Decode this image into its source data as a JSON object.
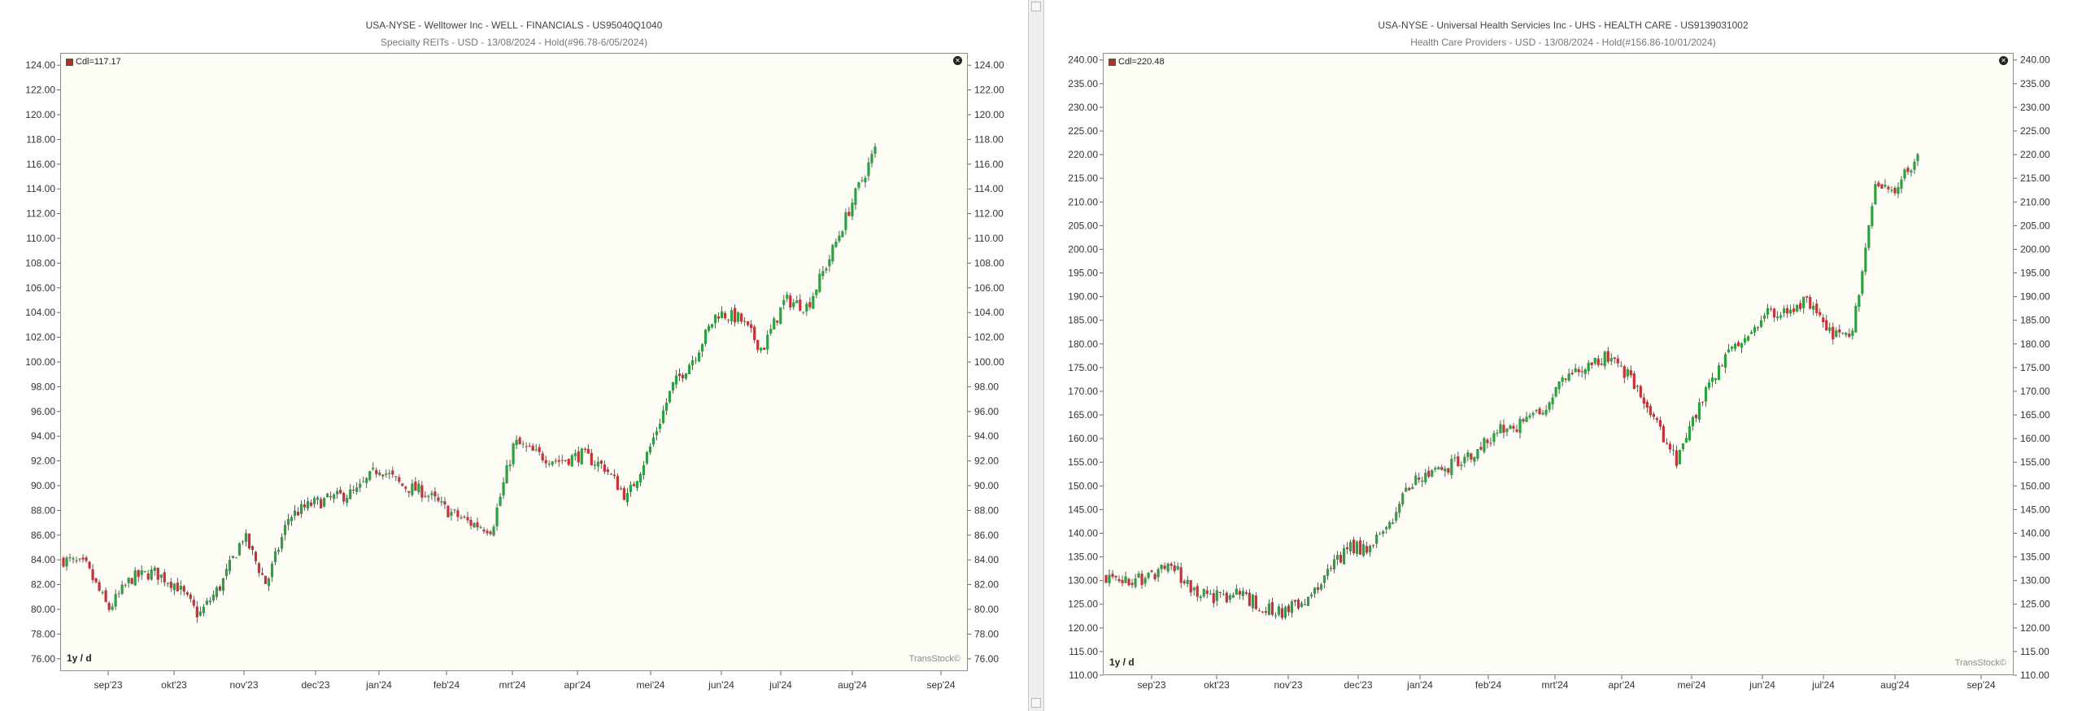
{
  "colors": {
    "up": "#2ea043",
    "down": "#c7323a",
    "wick": "#333333",
    "plot_bg": "#fdfdf6"
  },
  "charts": [
    {
      "title": "USA-NYSE - Welltower Inc - WELL - FINANCIALS - US95040Q1040",
      "subtitle": "Specialty REITs - USD - 13/08/2024 - Hold(#96.78-6/05/2024)",
      "legend": "Cdl=117.17",
      "period": "1y / d",
      "brand": "TransStock©",
      "close_icon": "close-icon"
    },
    {
      "title": "USA-NYSE - Universal Health Servicies Inc - UHS - HEALTH CARE - US9139031002",
      "subtitle": "Health Care Providers - USD - 13/08/2024 - Hold(#156.86-10/01/2024)",
      "legend": "Cdl=220.48",
      "period": "1y / d",
      "brand": "TransStock©",
      "close_icon": "close-icon"
    }
  ],
  "chart_data": [
    {
      "type": "candlestick",
      "title": "USA-NYSE - Welltower Inc - WELL - FINANCIALS - US95040Q1040",
      "subtitle": "Specialty REITs - USD - 13/08/2024 - Hold(#96.78-6/05/2024)",
      "ylim": [
        75,
        125
      ],
      "yticks": [
        "76.00",
        "78.00",
        "80.00",
        "82.00",
        "84.00",
        "86.00",
        "88.00",
        "90.00",
        "92.00",
        "94.00",
        "96.00",
        "98.00",
        "100.00",
        "102.00",
        "104.00",
        "106.00",
        "108.00",
        "110.00",
        "112.00",
        "114.00",
        "116.00",
        "118.00",
        "120.00",
        "122.00",
        "124.00"
      ],
      "xticks": [
        "sep'23",
        "okt'23",
        "nov'23",
        "dec'23",
        "jan'24",
        "feb'24",
        "mrt'24",
        "apr'24",
        "mei'24",
        "jun'24",
        "jul'24",
        "aug'24",
        "sep'24"
      ],
      "series": [
        {
          "month": "aug'23",
          "closes": [
            84.0,
            83.5
          ]
        },
        {
          "month": "sep'23",
          "closes": [
            80.0,
            82.5,
            83.0
          ]
        },
        {
          "month": "okt'23",
          "closes": [
            82.0,
            79.5,
            82.0
          ]
        },
        {
          "month": "nov'23",
          "closes": [
            86.0,
            82.0,
            87.5
          ]
        },
        {
          "month": "dec'23",
          "closes": [
            88.5,
            89.0,
            89.5
          ]
        },
        {
          "month": "jan'24",
          "closes": [
            91.5,
            90.0,
            89.5
          ]
        },
        {
          "month": "feb'24",
          "closes": [
            88.0,
            87.0,
            86.5
          ]
        },
        {
          "month": "mrt'24",
          "closes": [
            93.5,
            92.5,
            92.0
          ]
        },
        {
          "month": "apr'24",
          "closes": [
            92.5,
            91.5,
            89.0
          ]
        },
        {
          "month": "mei'24",
          "closes": [
            93.0,
            98.0,
            100.5
          ]
        },
        {
          "month": "jun'24",
          "closes": [
            104.0,
            103.5,
            101.0
          ]
        },
        {
          "month": "jul'24",
          "closes": [
            105.0,
            104.5,
            108.5
          ]
        },
        {
          "month": "aug'24",
          "closes": [
            113.0,
            117.17
          ]
        }
      ]
    },
    {
      "type": "candlestick",
      "title": "USA-NYSE - Universal Health Servicies Inc - UHS - HEALTH CARE - US9139031002",
      "subtitle": "Health Care Providers - USD - 13/08/2024 - Hold(#156.86-10/01/2024)",
      "ylim": [
        110,
        241.5
      ],
      "yticks": [
        "110.00",
        "115.00",
        "120.00",
        "125.00",
        "130.00",
        "135.00",
        "140.00",
        "145.00",
        "150.00",
        "155.00",
        "160.00",
        "165.00",
        "170.00",
        "175.00",
        "180.00",
        "185.00",
        "190.00",
        "195.00",
        "200.00",
        "205.00",
        "210.00",
        "215.00",
        "220.00",
        "225.00",
        "230.00",
        "235.00",
        "240.00"
      ],
      "xticks": [
        "sep'23",
        "okt'23",
        "nov'23",
        "dec'23",
        "jan'24",
        "feb'24",
        "mrt'24",
        "apr'24",
        "mei'24",
        "jun'24",
        "jul'24",
        "aug'24",
        "sep'24"
      ],
      "series": [
        {
          "month": "aug'23",
          "closes": [
            131.0,
            129.5
          ]
        },
        {
          "month": "sep'23",
          "closes": [
            131.0,
            133.0,
            128.0
          ]
        },
        {
          "month": "okt'23",
          "closes": [
            126.5,
            127.0,
            125.0
          ]
        },
        {
          "month": "nov'23",
          "closes": [
            123.5,
            125.0,
            131.0
          ]
        },
        {
          "month": "dec'23",
          "closes": [
            137.0,
            136.5,
            143.0
          ]
        },
        {
          "month": "jan'24",
          "closes": [
            151.0,
            153.0,
            155.0
          ]
        },
        {
          "month": "feb'24",
          "closes": [
            158.0,
            162.0,
            163.0
          ]
        },
        {
          "month": "mrt'24",
          "closes": [
            166.0,
            174.0,
            175.0
          ]
        },
        {
          "month": "apr'24",
          "closes": [
            178.0,
            172.0,
            164.0
          ]
        },
        {
          "month": "mei'24",
          "closes": [
            155.0,
            167.0,
            176.0
          ]
        },
        {
          "month": "jun'24",
          "closes": [
            181.0,
            186.0,
            187.0
          ]
        },
        {
          "month": "jul'24",
          "closes": [
            189.0,
            182.0,
            181.0
          ]
        },
        {
          "month": "aug'24",
          "closes": [
            213.0,
            212.0,
            220.48
          ]
        }
      ]
    }
  ]
}
